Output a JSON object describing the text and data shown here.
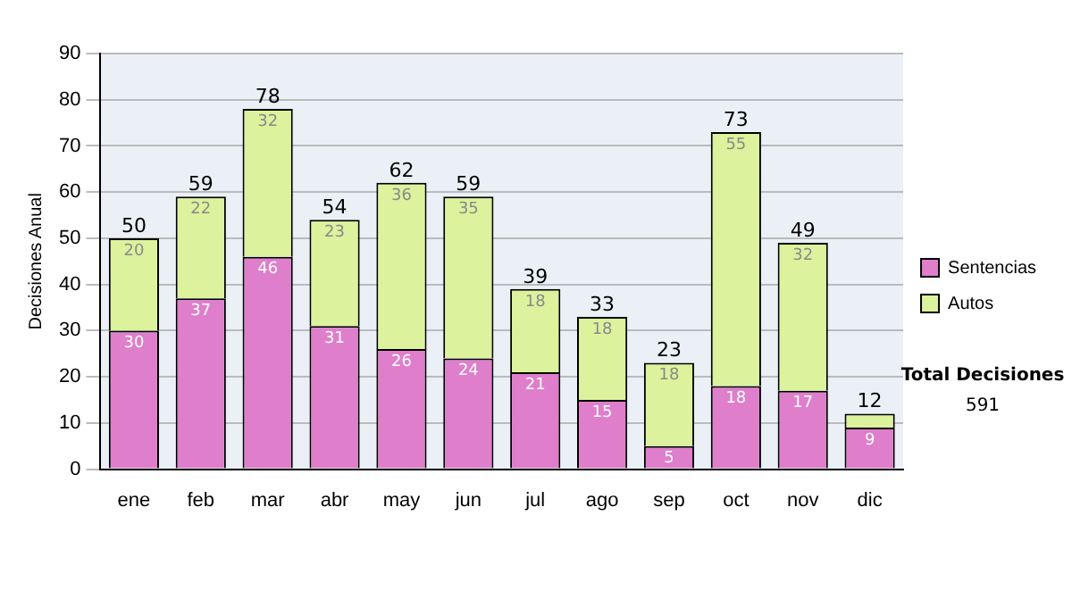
{
  "chart_data": {
    "type": "bar",
    "stacked": true,
    "ylabel": "Decisiones Anual",
    "categories": [
      "ene",
      "feb",
      "mar",
      "abr",
      "may",
      "jun",
      "jul",
      "ago",
      "sep",
      "oct",
      "nov",
      "dic"
    ],
    "series": [
      {
        "name": "Sentencias",
        "color": "#df7ecb",
        "values": [
          30,
          37,
          46,
          31,
          26,
          24,
          21,
          15,
          5,
          18,
          17,
          9
        ],
        "value_labels": [
          "30",
          "37",
          "46",
          "31",
          "26",
          "24",
          "21",
          "15",
          "5",
          "18",
          "17",
          "9"
        ]
      },
      {
        "name": "Autos",
        "color": "#dcf29c",
        "values": [
          20,
          22,
          32,
          23,
          36,
          35,
          18,
          18,
          18,
          55,
          32,
          3
        ],
        "value_labels": [
          "20",
          "22",
          "32",
          "23",
          "36",
          "35",
          "18",
          "18",
          "18",
          "55",
          "32",
          null
        ]
      }
    ],
    "totals": [
      "50",
      "59",
      "78",
      "54",
      "62",
      "59",
      "39",
      "33",
      "23",
      "73",
      "49",
      "12"
    ],
    "ylim": [
      0,
      90
    ],
    "yticks": [
      0,
      10,
      20,
      30,
      40,
      50,
      60,
      70,
      80,
      90
    ],
    "grid": "y",
    "legend": "right",
    "annotations": [
      "Total Decisiones",
      "591"
    ]
  }
}
